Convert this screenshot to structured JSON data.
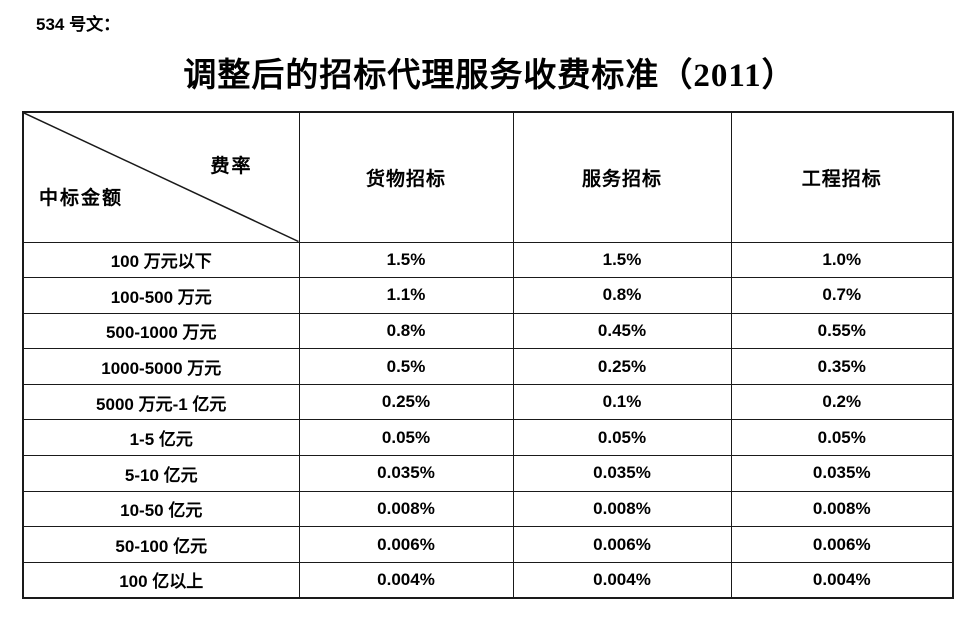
{
  "page": {
    "doc_label": "534 号文：",
    "title": "调整后的招标代理服务收费标准（2011）"
  },
  "table": {
    "corner": {
      "rate_label": "费率",
      "amount_label": "中标金额"
    },
    "column_headers": [
      "货物招标",
      "服务招标",
      "工程招标"
    ],
    "rows": [
      {
        "amount": "100 万元以下",
        "values": [
          "1.5%",
          "1.5%",
          "1.0%"
        ]
      },
      {
        "amount": "100-500 万元",
        "values": [
          "1.1%",
          "0.8%",
          "0.7%"
        ]
      },
      {
        "amount": "500-1000 万元",
        "values": [
          "0.8%",
          "0.45%",
          "0.55%"
        ]
      },
      {
        "amount": "1000-5000 万元",
        "values": [
          "0.5%",
          "0.25%",
          "0.35%"
        ]
      },
      {
        "amount": "5000 万元-1 亿元",
        "values": [
          "0.25%",
          "0.1%",
          "0.2%"
        ]
      },
      {
        "amount": "1-5 亿元",
        "values": [
          "0.05%",
          "0.05%",
          "0.05%"
        ]
      },
      {
        "amount": "5-10 亿元",
        "values": [
          "0.035%",
          "0.035%",
          "0.035%"
        ]
      },
      {
        "amount": "10-50 亿元",
        "values": [
          "0.008%",
          "0.008%",
          "0.008%"
        ]
      },
      {
        "amount": "50-100 亿元",
        "values": [
          "0.006%",
          "0.006%",
          "0.006%"
        ]
      },
      {
        "amount": "100 亿以上",
        "values": [
          "0.004%",
          "0.004%",
          "0.004%"
        ]
      }
    ]
  },
  "colors": {
    "text": "#000000",
    "border": "#1a1a1a",
    "background": "#ffffff"
  }
}
